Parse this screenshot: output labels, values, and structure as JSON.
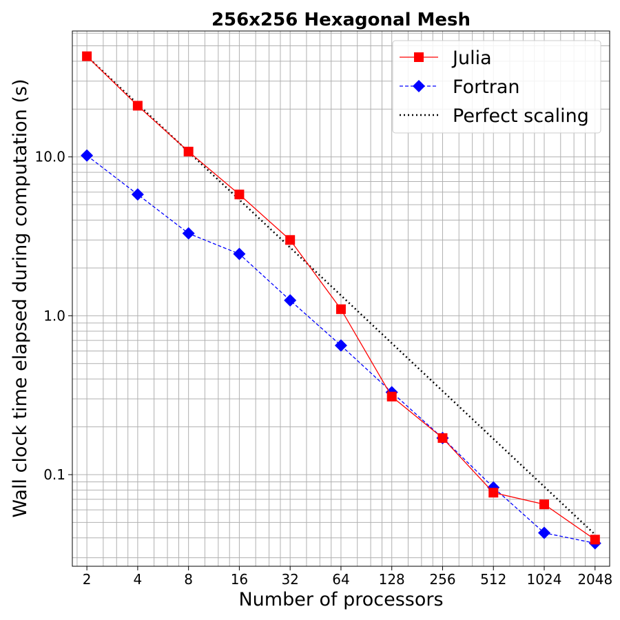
{
  "chart_data": {
    "type": "line",
    "title": "256x256 Hexagonal Mesh",
    "xlabel": "Number of processors",
    "ylabel": "Wall clock time elapsed during computation (s)",
    "x_scale": "log2",
    "y_scale": "log10",
    "xlim": [
      1.64,
      2500
    ],
    "ylim": [
      0.0265,
      62
    ],
    "x_ticks": [
      2,
      4,
      8,
      16,
      32,
      64,
      128,
      256,
      512,
      1024,
      2048
    ],
    "x_tick_labels": [
      "2",
      "4",
      "8",
      "16",
      "32",
      "64",
      "128",
      "256",
      "512",
      "1024",
      "2048"
    ],
    "y_ticks": [
      0.1,
      1.0,
      10.0
    ],
    "y_tick_labels": [
      "0.1",
      "1.0",
      "10.0"
    ],
    "grid": true,
    "legend_position": "top-right",
    "x": [
      2,
      4,
      8,
      16,
      32,
      64,
      128,
      256,
      512,
      1024,
      2048
    ],
    "series": [
      {
        "name": "Julia",
        "color": "#ff0000",
        "line_style": "solid",
        "marker": "square",
        "values": [
          43,
          21,
          10.8,
          5.8,
          3.0,
          1.1,
          0.31,
          0.17,
          0.077,
          0.065,
          0.039
        ]
      },
      {
        "name": "Fortran",
        "color": "#0000ff",
        "line_style": "dashed",
        "marker": "diamond",
        "values": [
          10.2,
          5.8,
          3.3,
          2.45,
          1.25,
          0.65,
          0.33,
          0.17,
          0.083,
          0.043,
          0.037
        ]
      },
      {
        "name": "Perfect scaling",
        "color": "#000000",
        "line_style": "dotted",
        "marker": "none",
        "values": [
          43,
          21.5,
          10.75,
          5.375,
          2.6875,
          1.34375,
          0.671875,
          0.3359375,
          0.16796875,
          0.083984375,
          0.0419921875
        ]
      }
    ]
  }
}
